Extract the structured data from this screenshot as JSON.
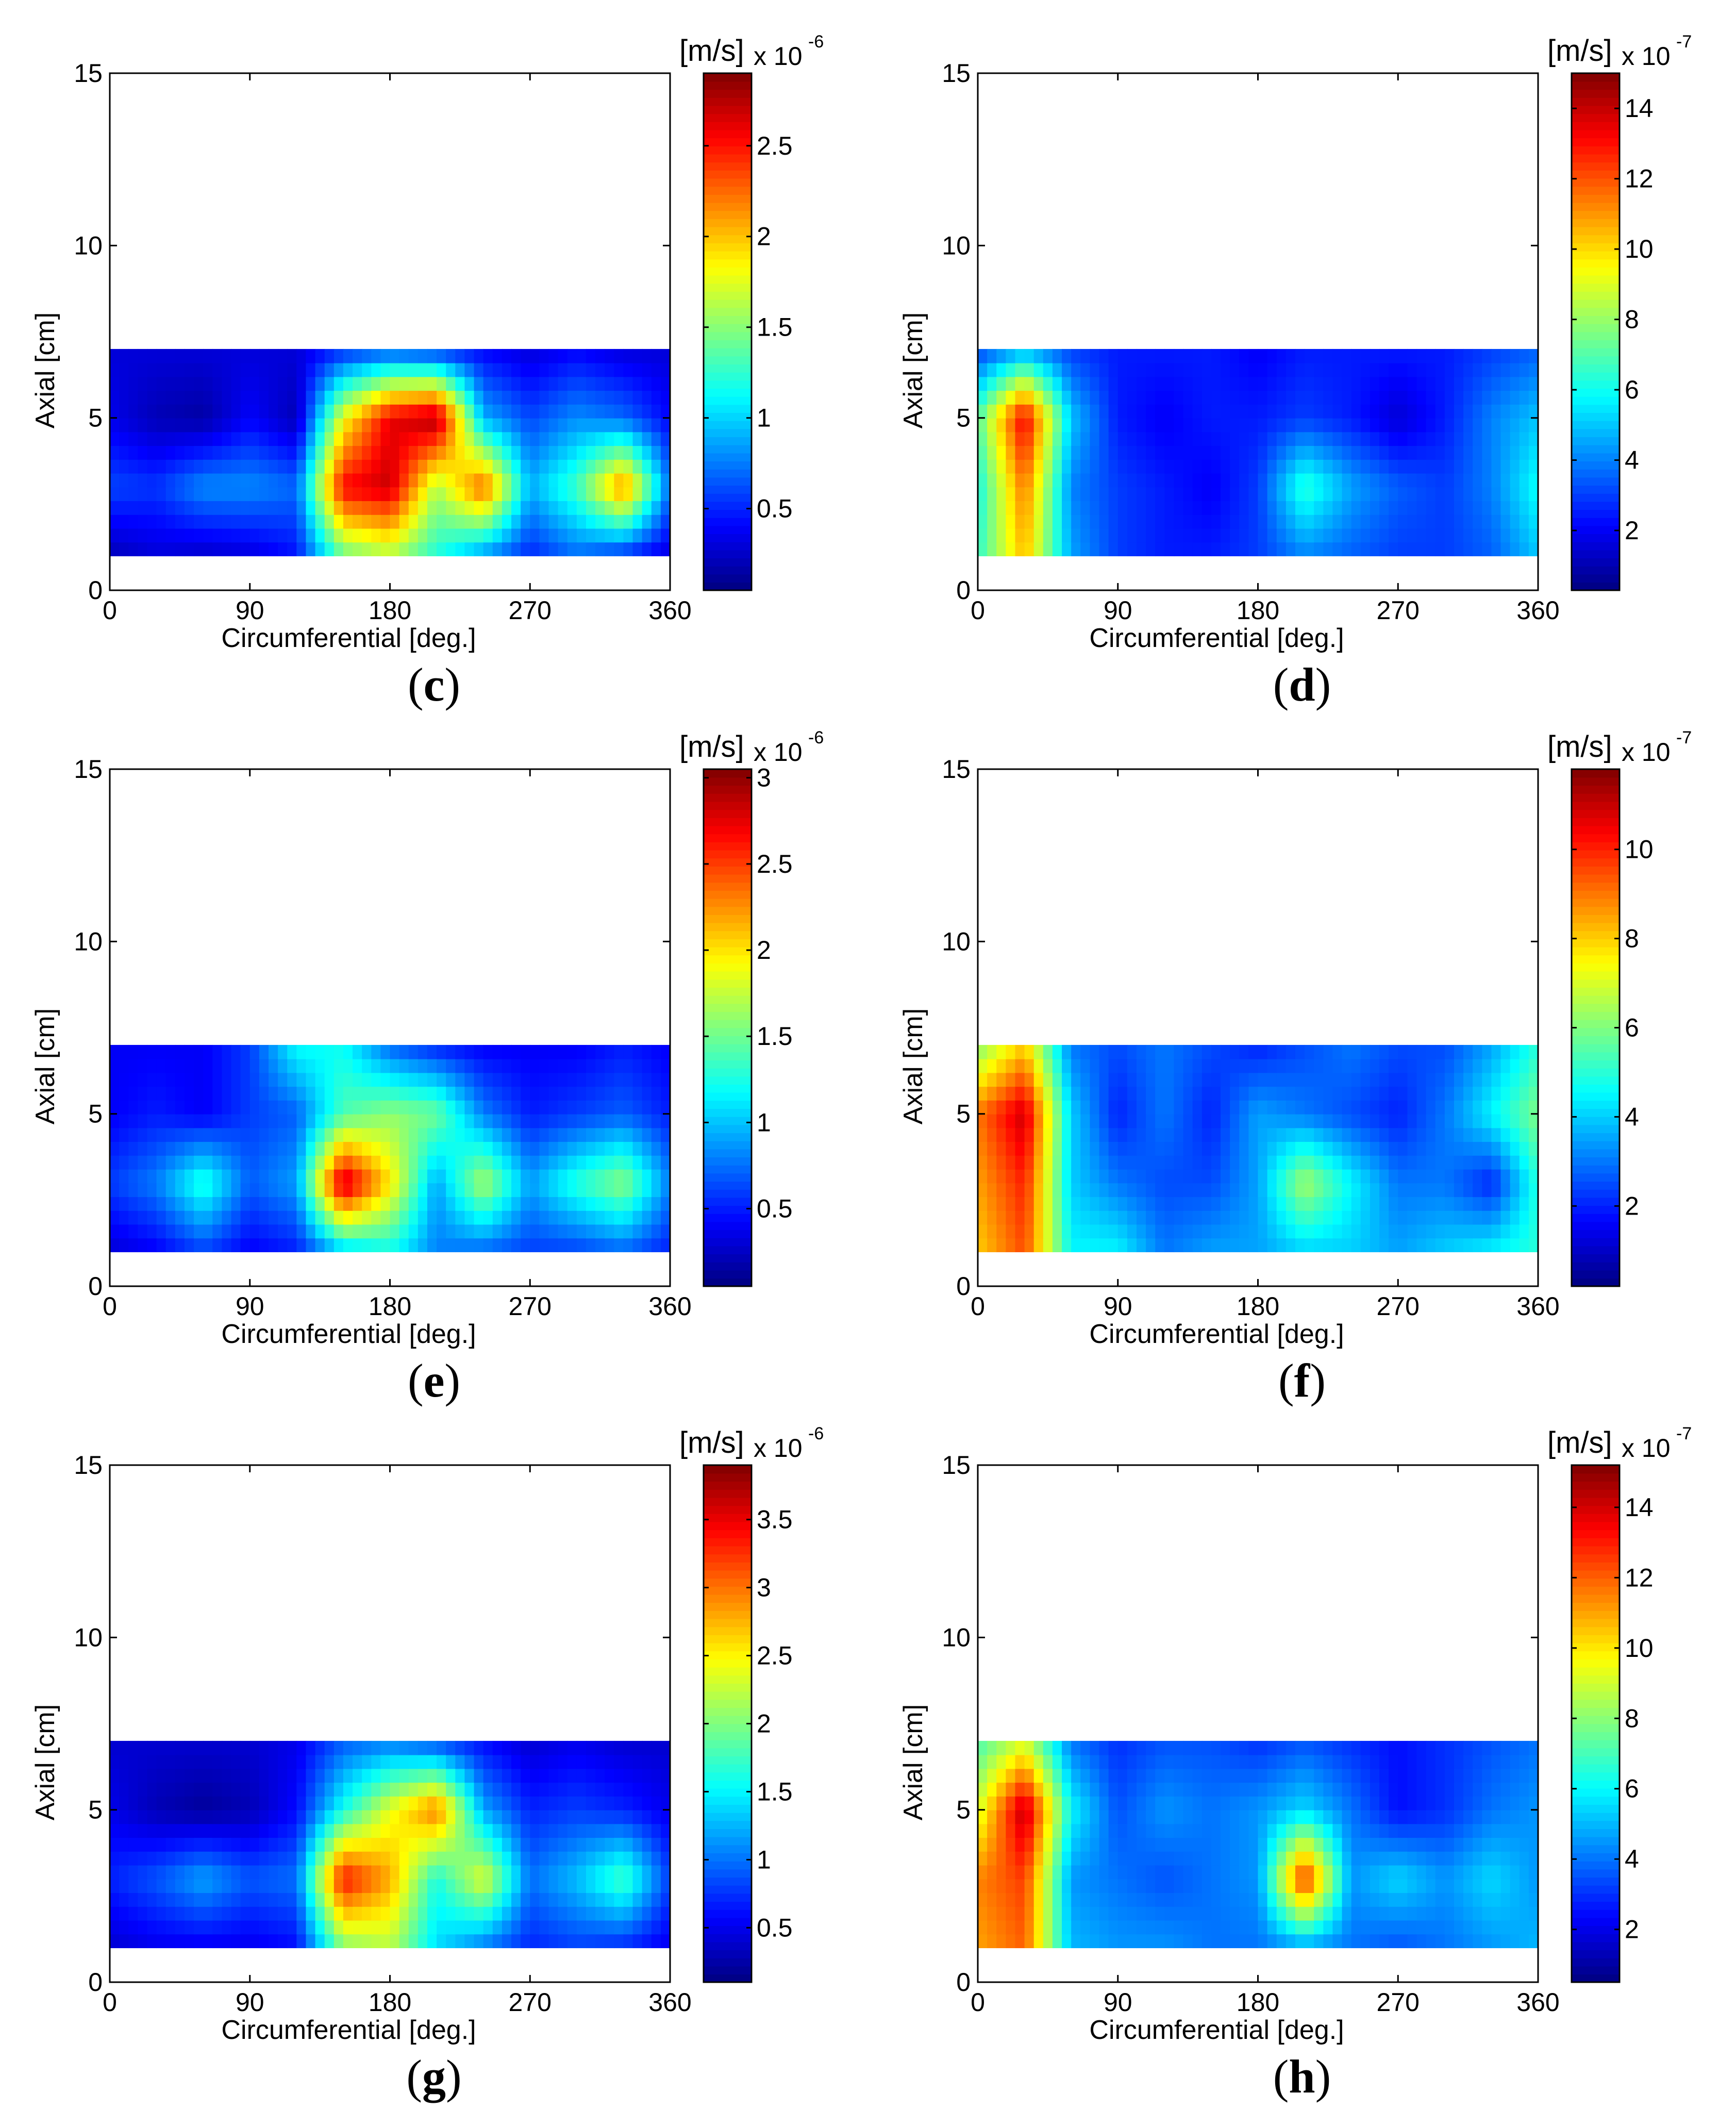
{
  "chart_data": [
    {
      "id": "c",
      "caption": "c",
      "type": "heatmap",
      "xlabel": "Circumferential [deg.]",
      "ylabel": "Axial [cm]",
      "xlim": [
        0,
        360
      ],
      "ylim": [
        0,
        15
      ],
      "xticks": [
        "0",
        "90",
        "180",
        "270",
        "360"
      ],
      "yticks": [
        "0",
        "5",
        "10",
        "15"
      ],
      "colorbar": {
        "unit": "[m/s]",
        "multiplier": "x 10",
        "exponent": "-6",
        "min": 0.05,
        "max": 2.9,
        "ticks": [
          "0.5",
          "1",
          "1.5",
          "2",
          "2.5"
        ]
      },
      "grid_x": [
        0,
        30,
        60,
        90,
        120,
        150,
        180,
        210,
        240,
        270,
        300,
        330,
        360
      ],
      "grid_y": [
        1,
        3,
        5,
        7
      ],
      "values": [
        [
          0.2,
          0.3,
          0.25,
          0.3,
          0.45,
          1.4,
          1.6,
          1.2,
          0.8,
          0.5,
          0.7,
          0.5,
          0.3
        ],
        [
          0.6,
          0.55,
          0.8,
          0.8,
          0.7,
          2.55,
          2.7,
          1.6,
          2.3,
          0.9,
          1.3,
          2.2,
          0.7
        ],
        [
          0.35,
          0.2,
          0.15,
          0.4,
          0.2,
          1.8,
          2.6,
          2.8,
          0.9,
          0.6,
          0.8,
          0.7,
          0.4
        ],
        [
          0.3,
          0.3,
          0.3,
          0.3,
          0.3,
          0.5,
          0.6,
          0.5,
          0.4,
          0.3,
          0.4,
          0.3,
          0.3
        ]
      ]
    },
    {
      "id": "d",
      "caption": "d",
      "type": "heatmap",
      "xlabel": "Circumferential [deg.]",
      "ylabel": "Axial [cm]",
      "xlim": [
        0,
        360
      ],
      "ylim": [
        0,
        15
      ],
      "xticks": [
        "0",
        "90",
        "180",
        "270",
        "360"
      ],
      "yticks": [
        "0",
        "5",
        "10",
        "15"
      ],
      "colorbar": {
        "unit": "[m/s]",
        "multiplier": "x 10",
        "exponent": "-7",
        "min": 0.3,
        "max": 15.0,
        "ticks": [
          "2",
          "4",
          "6",
          "8",
          "10",
          "12",
          "14"
        ]
      },
      "grid_x": [
        0,
        30,
        60,
        90,
        120,
        150,
        180,
        210,
        240,
        270,
        300,
        330,
        360
      ],
      "grid_y": [
        1,
        3,
        5,
        7
      ],
      "values": [
        [
          6.5,
          10.5,
          4.5,
          3.0,
          2.5,
          2.5,
          3.0,
          4.0,
          3.5,
          3.0,
          3.0,
          3.5,
          5.0
        ],
        [
          6.0,
          11.5,
          4.0,
          3.0,
          2.5,
          2.0,
          3.0,
          6.5,
          4.5,
          3.5,
          3.0,
          4.0,
          6.0
        ],
        [
          7.0,
          13.5,
          5.0,
          2.5,
          2.0,
          2.5,
          2.5,
          3.0,
          2.5,
          1.5,
          2.5,
          4.0,
          5.0
        ],
        [
          3.0,
          4.5,
          3.0,
          2.5,
          2.5,
          2.5,
          2.0,
          2.5,
          2.5,
          2.5,
          2.5,
          3.0,
          3.5
        ]
      ]
    },
    {
      "id": "e",
      "caption": "e",
      "type": "heatmap",
      "xlabel": "Circumferential [deg.]",
      "ylabel": "Axial [cm]",
      "xlim": [
        0,
        360
      ],
      "ylim": [
        0,
        15
      ],
      "xticks": [
        "0",
        "90",
        "180",
        "270",
        "360"
      ],
      "yticks": [
        "0",
        "5",
        "10",
        "15"
      ],
      "colorbar": {
        "unit": "[m/s]",
        "multiplier": "x 10",
        "exponent": "-6",
        "min": 0.05,
        "max": 3.05,
        "ticks": [
          "0.5",
          "1",
          "1.5",
          "2",
          "2.5",
          "3"
        ]
      },
      "grid_x": [
        0,
        30,
        60,
        90,
        120,
        150,
        180,
        210,
        240,
        270,
        300,
        330,
        360
      ],
      "grid_y": [
        1,
        3,
        5,
        7
      ],
      "values": [
        [
          0.3,
          0.4,
          0.6,
          0.4,
          0.5,
          1.0,
          1.2,
          0.8,
          0.7,
          0.6,
          0.6,
          0.7,
          0.5
        ],
        [
          0.6,
          0.8,
          1.3,
          0.7,
          0.9,
          2.9,
          2.0,
          0.9,
          1.7,
          0.9,
          1.3,
          1.6,
          0.8
        ],
        [
          0.4,
          0.5,
          0.4,
          0.6,
          0.7,
          1.4,
          1.6,
          1.5,
          0.8,
          0.5,
          0.6,
          0.7,
          0.5
        ],
        [
          0.4,
          0.4,
          0.4,
          0.6,
          1.2,
          1.2,
          0.7,
          0.5,
          0.4,
          0.4,
          0.4,
          0.5,
          0.4
        ]
      ]
    },
    {
      "id": "f",
      "caption": "f",
      "type": "heatmap",
      "xlabel": "Circumferential [deg.]",
      "ylabel": "Axial [cm]",
      "xlim": [
        0,
        360
      ],
      "ylim": [
        0,
        15
      ],
      "xticks": [
        "0",
        "90",
        "180",
        "270",
        "360"
      ],
      "yticks": [
        "0",
        "5",
        "10",
        "15"
      ],
      "colorbar": {
        "unit": "[m/s]",
        "multiplier": "x 10",
        "exponent": "-7",
        "min": 0.2,
        "max": 11.8,
        "ticks": [
          "2",
          "4",
          "6",
          "8",
          "10"
        ]
      },
      "grid_x": [
        0,
        30,
        60,
        90,
        120,
        150,
        180,
        210,
        240,
        270,
        300,
        330,
        360
      ],
      "grid_y": [
        1,
        3,
        5,
        7
      ],
      "values": [
        [
          8.0,
          9.5,
          4.5,
          4.5,
          3.0,
          3.5,
          3.5,
          4.0,
          4.0,
          3.5,
          4.0,
          4.5,
          5.0
        ],
        [
          8.5,
          10.0,
          4.0,
          3.0,
          2.5,
          2.5,
          3.5,
          6.5,
          4.5,
          3.0,
          3.0,
          2.0,
          5.0
        ],
        [
          9.0,
          11.0,
          4.0,
          2.0,
          3.0,
          2.0,
          3.5,
          3.0,
          2.5,
          2.0,
          3.0,
          4.5,
          6.0
        ],
        [
          6.0,
          8.0,
          3.0,
          2.5,
          3.0,
          2.5,
          2.0,
          2.5,
          3.0,
          2.5,
          2.5,
          3.5,
          5.0
        ]
      ]
    },
    {
      "id": "g",
      "caption": "g",
      "type": "heatmap",
      "xlabel": "Circumferential [deg.]",
      "ylabel": "Axial [cm]",
      "xlim": [
        0,
        360
      ],
      "ylim": [
        0,
        15
      ],
      "xticks": [
        "0",
        "90",
        "180",
        "270",
        "360"
      ],
      "yticks": [
        "0",
        "5",
        "10",
        "15"
      ],
      "colorbar": {
        "unit": "[m/s]",
        "multiplier": "x 10",
        "exponent": "-6",
        "min": 0.1,
        "max": 3.9,
        "ticks": [
          "0.5",
          "1",
          "1.5",
          "2",
          "2.5",
          "3",
          "3.5"
        ]
      },
      "grid_x": [
        0,
        30,
        60,
        90,
        120,
        150,
        180,
        210,
        240,
        270,
        300,
        330,
        360
      ],
      "grid_y": [
        1,
        3,
        5,
        7
      ],
      "values": [
        [
          0.4,
          0.5,
          0.5,
          0.5,
          0.6,
          2.0,
          2.2,
          1.4,
          1.0,
          0.7,
          0.8,
          0.7,
          0.5
        ],
        [
          0.7,
          0.9,
          1.2,
          0.9,
          1.0,
          3.4,
          2.8,
          1.6,
          2.4,
          1.0,
          1.3,
          1.8,
          0.8
        ],
        [
          0.5,
          0.3,
          0.2,
          0.3,
          0.6,
          1.6,
          2.4,
          3.0,
          1.2,
          0.7,
          0.8,
          0.7,
          0.5
        ],
        [
          0.4,
          0.4,
          0.4,
          0.4,
          0.5,
          0.9,
          1.0,
          0.8,
          0.6,
          0.4,
          0.5,
          0.4,
          0.4
        ]
      ]
    },
    {
      "id": "h",
      "caption": "h",
      "type": "heatmap",
      "xlabel": "Circumferential [deg.]",
      "ylabel": "Axial [cm]",
      "xlim": [
        0,
        360
      ],
      "ylim": [
        0,
        15
      ],
      "xticks": [
        "0",
        "90",
        "180",
        "270",
        "360"
      ],
      "yticks": [
        "0",
        "5",
        "10",
        "15"
      ],
      "colorbar": {
        "unit": "[m/s]",
        "multiplier": "x 10",
        "exponent": "-7",
        "min": 0.5,
        "max": 15.2,
        "ticks": [
          "2",
          "4",
          "6",
          "8",
          "10",
          "12",
          "14"
        ]
      },
      "grid_x": [
        0,
        30,
        60,
        90,
        120,
        150,
        180,
        210,
        240,
        270,
        300,
        330,
        360
      ],
      "grid_y": [
        1,
        3,
        5,
        7
      ],
      "values": [
        [
          11.0,
          12.0,
          5.0,
          4.5,
          4.5,
          4.0,
          4.0,
          4.5,
          4.0,
          3.5,
          4.0,
          4.5,
          5.0
        ],
        [
          11.5,
          12.5,
          4.5,
          4.0,
          3.5,
          4.0,
          4.5,
          13.0,
          4.5,
          5.5,
          4.5,
          5.5,
          4.5
        ],
        [
          9.0,
          14.5,
          6.0,
          3.5,
          4.5,
          4.0,
          4.5,
          5.5,
          4.0,
          2.5,
          3.0,
          4.0,
          4.5
        ],
        [
          7.0,
          9.0,
          4.0,
          3.0,
          3.5,
          3.5,
          3.0,
          3.5,
          3.0,
          2.5,
          3.0,
          3.5,
          4.0
        ]
      ]
    }
  ]
}
